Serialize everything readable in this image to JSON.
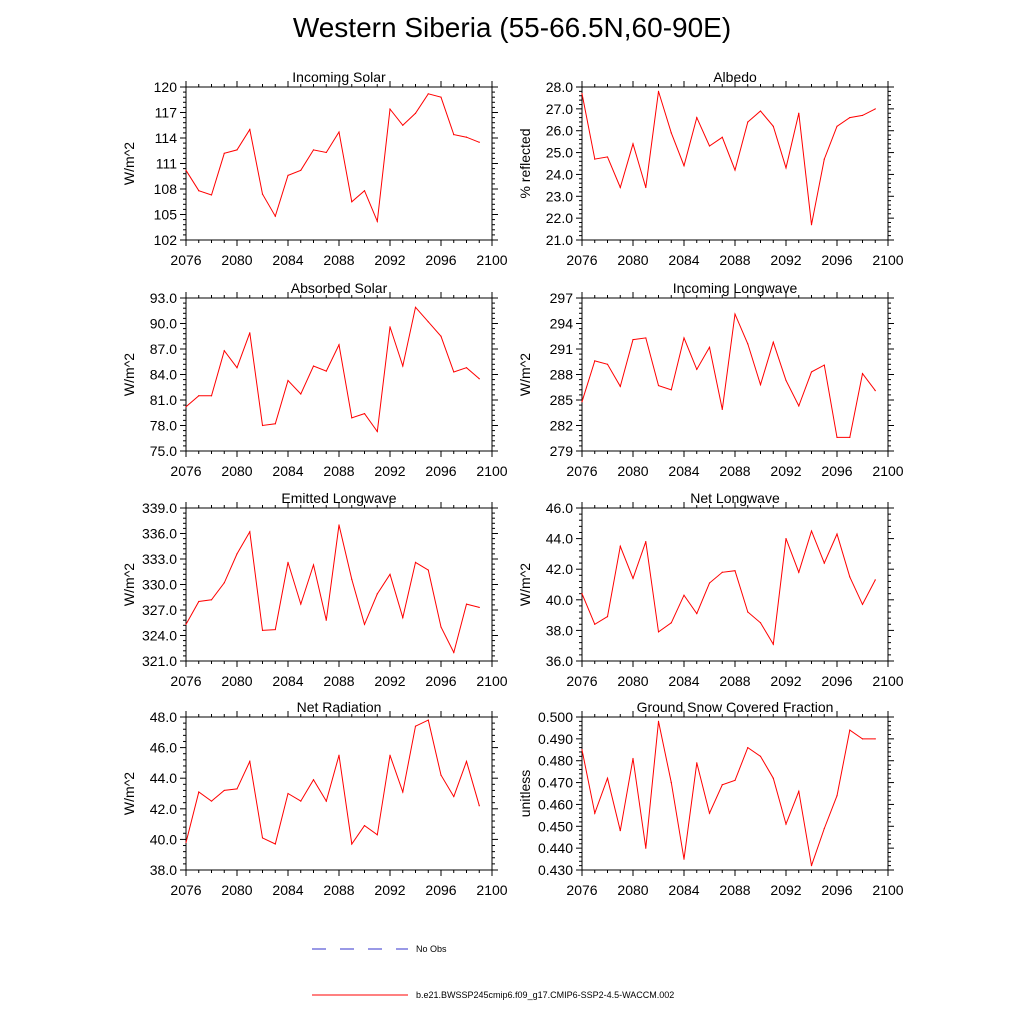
{
  "page_title": "Western Siberia (55-66.5N,60-90E)",
  "colors": {
    "model_line": "#ff0000",
    "obs_line": "#3333cc",
    "axis": "#000000"
  },
  "legend": {
    "obs_label": "No Obs",
    "model_label": "b.e21.BWSSP245cmip6.f09_g17.CMIP6-SSP2-4.5-WACCM.002"
  },
  "chart_data": [
    {
      "type": "line",
      "title": "Incoming Solar",
      "xlabel": "",
      "ylabel": "W/m^2",
      "xlim": [
        2076,
        2100
      ],
      "ylim": [
        102,
        120
      ],
      "xticks": [
        2076,
        2080,
        2084,
        2088,
        2092,
        2096,
        2100
      ],
      "yticks": [
        "102",
        "105",
        "108",
        "111",
        "114",
        "117",
        "120"
      ],
      "x": [
        2076,
        2077,
        2078,
        2079,
        2080,
        2081,
        2082,
        2083,
        2084,
        2085,
        2086,
        2087,
        2088,
        2089,
        2090,
        2091,
        2092,
        2093,
        2094,
        2095,
        2096,
        2097,
        2098,
        2099
      ],
      "series": [
        {
          "name": "b.e21.BWSSP245cmip6.f09_g17.CMIP6-SSP2-4.5-WACCM.002",
          "values": [
            110.2,
            107.8,
            107.3,
            112.2,
            112.6,
            115.0,
            107.4,
            104.8,
            109.6,
            110.2,
            112.6,
            112.3,
            114.7,
            106.5,
            107.8,
            104.2,
            117.4,
            115.5,
            116.9,
            119.2,
            118.8,
            114.4,
            114.1,
            113.5
          ]
        }
      ]
    },
    {
      "type": "line",
      "title": "Albedo",
      "xlabel": "",
      "ylabel": "% reflected",
      "xlim": [
        2076,
        2100
      ],
      "ylim": [
        21.0,
        28.0
      ],
      "xticks": [
        2076,
        2080,
        2084,
        2088,
        2092,
        2096,
        2100
      ],
      "yticks": [
        "21.0",
        "22.0",
        "23.0",
        "24.0",
        "25.0",
        "26.0",
        "27.0",
        "28.0"
      ],
      "x": [
        2076,
        2077,
        2078,
        2079,
        2080,
        2081,
        2082,
        2083,
        2084,
        2085,
        2086,
        2087,
        2088,
        2089,
        2090,
        2091,
        2092,
        2093,
        2094,
        2095,
        2096,
        2097,
        2098,
        2099
      ],
      "series": [
        {
          "name": "b.e21.BWSSP245cmip6.f09_g17.CMIP6-SSP2-4.5-WACCM.002",
          "values": [
            27.7,
            24.7,
            24.8,
            23.4,
            25.4,
            23.4,
            27.8,
            25.9,
            24.4,
            26.6,
            25.3,
            25.7,
            24.2,
            26.4,
            26.9,
            26.2,
            24.3,
            26.8,
            21.7,
            24.7,
            26.2,
            26.6,
            26.7,
            27.0
          ]
        }
      ]
    },
    {
      "type": "line",
      "title": "Absorbed Solar",
      "xlabel": "",
      "ylabel": "W/m^2",
      "xlim": [
        2076,
        2100
      ],
      "ylim": [
        75.0,
        93.0
      ],
      "xticks": [
        2076,
        2080,
        2084,
        2088,
        2092,
        2096,
        2100
      ],
      "yticks": [
        "75.0",
        "78.0",
        "81.0",
        "84.0",
        "87.0",
        "90.0",
        "93.0"
      ],
      "x": [
        2076,
        2077,
        2078,
        2079,
        2080,
        2081,
        2082,
        2083,
        2084,
        2085,
        2086,
        2087,
        2088,
        2089,
        2090,
        2091,
        2092,
        2093,
        2094,
        2095,
        2096,
        2097,
        2098,
        2099
      ],
      "series": [
        {
          "name": "b.e21.BWSSP245cmip6.f09_g17.CMIP6-SSP2-4.5-WACCM.002",
          "values": [
            80.2,
            81.5,
            81.5,
            86.8,
            84.8,
            88.9,
            78.0,
            78.2,
            83.3,
            81.7,
            85.0,
            84.4,
            87.5,
            78.9,
            79.4,
            77.3,
            89.6,
            85.0,
            91.9,
            90.2,
            88.5,
            84.3,
            84.8,
            83.5
          ]
        }
      ]
    },
    {
      "type": "line",
      "title": "Incoming Longwave",
      "xlabel": "",
      "ylabel": "W/m^2",
      "xlim": [
        2076,
        2100
      ],
      "ylim": [
        279,
        297
      ],
      "xticks": [
        2076,
        2080,
        2084,
        2088,
        2092,
        2096,
        2100
      ],
      "yticks": [
        "279",
        "282",
        "285",
        "288",
        "291",
        "294",
        "297"
      ],
      "x": [
        2076,
        2077,
        2078,
        2079,
        2080,
        2081,
        2082,
        2083,
        2084,
        2085,
        2086,
        2087,
        2088,
        2089,
        2090,
        2091,
        2092,
        2093,
        2094,
        2095,
        2096,
        2097,
        2098,
        2099
      ],
      "series": [
        {
          "name": "b.e21.BWSSP245cmip6.f09_g17.CMIP6-SSP2-4.5-WACCM.002",
          "values": [
            284.8,
            289.6,
            289.2,
            286.6,
            292.1,
            292.3,
            286.7,
            286.2,
            292.3,
            288.6,
            291.2,
            283.9,
            295.1,
            291.6,
            286.8,
            291.8,
            287.3,
            284.3,
            288.3,
            289.1,
            280.6,
            280.6,
            288.1,
            286.1
          ]
        }
      ]
    },
    {
      "type": "line",
      "title": "Emitted Longwave",
      "xlabel": "",
      "ylabel": "W/m^2",
      "xlim": [
        2076,
        2100
      ],
      "ylim": [
        321.0,
        339.0
      ],
      "xticks": [
        2076,
        2080,
        2084,
        2088,
        2092,
        2096,
        2100
      ],
      "yticks": [
        "321.0",
        "324.0",
        "327.0",
        "330.0",
        "333.0",
        "336.0",
        "339.0"
      ],
      "x": [
        2076,
        2077,
        2078,
        2079,
        2080,
        2081,
        2082,
        2083,
        2084,
        2085,
        2086,
        2087,
        2088,
        2089,
        2090,
        2091,
        2092,
        2093,
        2094,
        2095,
        2096,
        2097,
        2098,
        2099
      ],
      "series": [
        {
          "name": "b.e21.BWSSP245cmip6.f09_g17.CMIP6-SSP2-4.5-WACCM.002",
          "values": [
            325.3,
            328.0,
            328.2,
            330.2,
            333.6,
            336.2,
            324.6,
            324.7,
            332.6,
            327.7,
            332.3,
            325.8,
            337.0,
            330.6,
            325.3,
            328.9,
            331.2,
            326.1,
            332.6,
            331.7,
            325.0,
            322.0,
            327.7,
            327.3
          ]
        }
      ]
    },
    {
      "type": "line",
      "title": "Net Longwave",
      "xlabel": "",
      "ylabel": "W/m^2",
      "xlim": [
        2076,
        2100
      ],
      "ylim": [
        36.0,
        46.0
      ],
      "xticks": [
        2076,
        2080,
        2084,
        2088,
        2092,
        2096,
        2100
      ],
      "yticks": [
        "36.0",
        "38.0",
        "40.0",
        "42.0",
        "44.0",
        "46.0"
      ],
      "x": [
        2076,
        2077,
        2078,
        2079,
        2080,
        2081,
        2082,
        2083,
        2084,
        2085,
        2086,
        2087,
        2088,
        2089,
        2090,
        2091,
        2092,
        2093,
        2094,
        2095,
        2096,
        2097,
        2098,
        2099
      ],
      "series": [
        {
          "name": "b.e21.BWSSP245cmip6.f09_g17.CMIP6-SSP2-4.5-WACCM.002",
          "values": [
            40.4,
            38.4,
            38.9,
            43.5,
            41.4,
            43.8,
            37.9,
            38.5,
            40.3,
            39.1,
            41.1,
            41.8,
            41.9,
            39.2,
            38.5,
            37.1,
            44.0,
            41.8,
            44.5,
            42.4,
            44.3,
            41.5,
            39.7,
            41.3
          ]
        }
      ]
    },
    {
      "type": "line",
      "title": "Net Radiation",
      "xlabel": "",
      "ylabel": "W/m^2",
      "xlim": [
        2076,
        2100
      ],
      "ylim": [
        38.0,
        48.0
      ],
      "xticks": [
        2076,
        2080,
        2084,
        2088,
        2092,
        2096,
        2100
      ],
      "yticks": [
        "38.0",
        "40.0",
        "42.0",
        "44.0",
        "46.0",
        "48.0"
      ],
      "x": [
        2076,
        2077,
        2078,
        2079,
        2080,
        2081,
        2082,
        2083,
        2084,
        2085,
        2086,
        2087,
        2088,
        2089,
        2090,
        2091,
        2092,
        2093,
        2094,
        2095,
        2096,
        2097,
        2098,
        2099
      ],
      "series": [
        {
          "name": "b.e21.BWSSP245cmip6.f09_g17.CMIP6-SSP2-4.5-WACCM.002",
          "values": [
            39.8,
            43.1,
            42.5,
            43.2,
            43.3,
            45.1,
            40.1,
            39.7,
            43.0,
            42.5,
            43.9,
            42.5,
            45.5,
            39.7,
            40.9,
            40.3,
            45.5,
            43.1,
            47.4,
            47.8,
            44.2,
            42.8,
            45.1,
            42.2
          ]
        }
      ]
    },
    {
      "type": "line",
      "title": "Ground Snow Covered Fraction",
      "xlabel": "",
      "ylabel": "unitless",
      "xlim": [
        2076,
        2100
      ],
      "ylim": [
        0.43,
        0.5
      ],
      "xticks": [
        2076,
        2080,
        2084,
        2088,
        2092,
        2096,
        2100
      ],
      "yticks": [
        "0.430",
        "0.440",
        "0.450",
        "0.460",
        "0.470",
        "0.480",
        "0.490",
        "0.500"
      ],
      "x": [
        2076,
        2077,
        2078,
        2079,
        2080,
        2081,
        2082,
        2083,
        2084,
        2085,
        2086,
        2087,
        2088,
        2089,
        2090,
        2091,
        2092,
        2093,
        2094,
        2095,
        2096,
        2097,
        2098,
        2099
      ],
      "series": [
        {
          "name": "b.e21.BWSSP245cmip6.f09_g17.CMIP6-SSP2-4.5-WACCM.002",
          "values": [
            0.485,
            0.456,
            0.472,
            0.448,
            0.481,
            0.44,
            0.498,
            0.47,
            0.435,
            0.479,
            0.456,
            0.469,
            0.471,
            0.486,
            0.482,
            0.472,
            0.451,
            0.466,
            0.432,
            0.449,
            0.464,
            0.494,
            0.49,
            0.49
          ]
        }
      ]
    }
  ]
}
